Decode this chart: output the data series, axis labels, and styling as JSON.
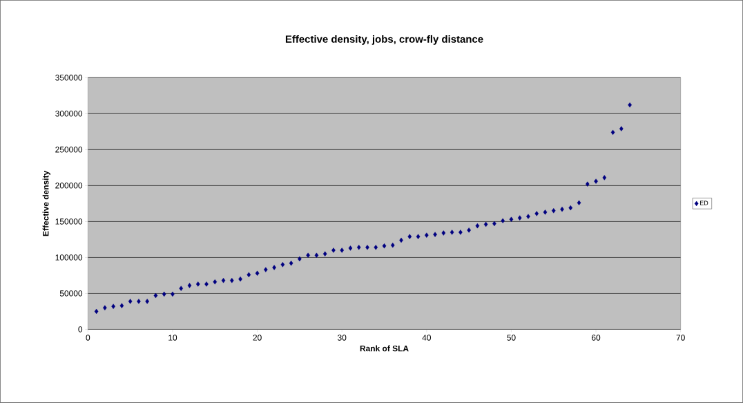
{
  "chart_data": {
    "type": "scatter",
    "title": "Effective density, jobs, crow-fly distance",
    "xlabel": "Rank of SLA",
    "ylabel": "Effective density",
    "x": [
      1,
      2,
      3,
      4,
      5,
      6,
      7,
      8,
      9,
      10,
      11,
      12,
      13,
      14,
      15,
      16,
      17,
      18,
      19,
      20,
      21,
      22,
      23,
      24,
      25,
      26,
      27,
      28,
      29,
      30,
      31,
      32,
      33,
      34,
      35,
      36,
      37,
      38,
      39,
      40,
      41,
      42,
      43,
      44,
      45,
      46,
      47,
      48,
      49,
      50,
      51,
      52,
      53,
      54,
      55,
      56,
      57,
      58,
      59,
      60,
      61,
      62,
      63,
      64
    ],
    "series": [
      {
        "name": "ED",
        "color": "#000080",
        "values": [
          25000,
          30000,
          32000,
          33000,
          39000,
          39000,
          39000,
          47000,
          49000,
          49000,
          57000,
          61000,
          63000,
          63000,
          66000,
          68000,
          68000,
          70000,
          76000,
          78000,
          83000,
          86000,
          90000,
          92000,
          98000,
          103000,
          103000,
          105000,
          110000,
          110000,
          113000,
          114000,
          114000,
          114000,
          116000,
          117000,
          124000,
          129000,
          129000,
          131000,
          132000,
          134000,
          135000,
          135000,
          138000,
          144000,
          146000,
          147000,
          151000,
          153000,
          155000,
          157000,
          161000,
          163000,
          165000,
          167000,
          169000,
          176000,
          202000,
          206000,
          211000,
          274000,
          279000,
          312000
        ]
      }
    ],
    "xlim": [
      0,
      70
    ],
    "xticks": [
      0,
      10,
      20,
      30,
      40,
      50,
      60,
      70
    ],
    "ylim": [
      0,
      350000
    ],
    "yticks": [
      0,
      50000,
      100000,
      150000,
      200000,
      250000,
      300000,
      350000
    ],
    "grid": "y",
    "legend": "right",
    "marker": "diamond"
  }
}
